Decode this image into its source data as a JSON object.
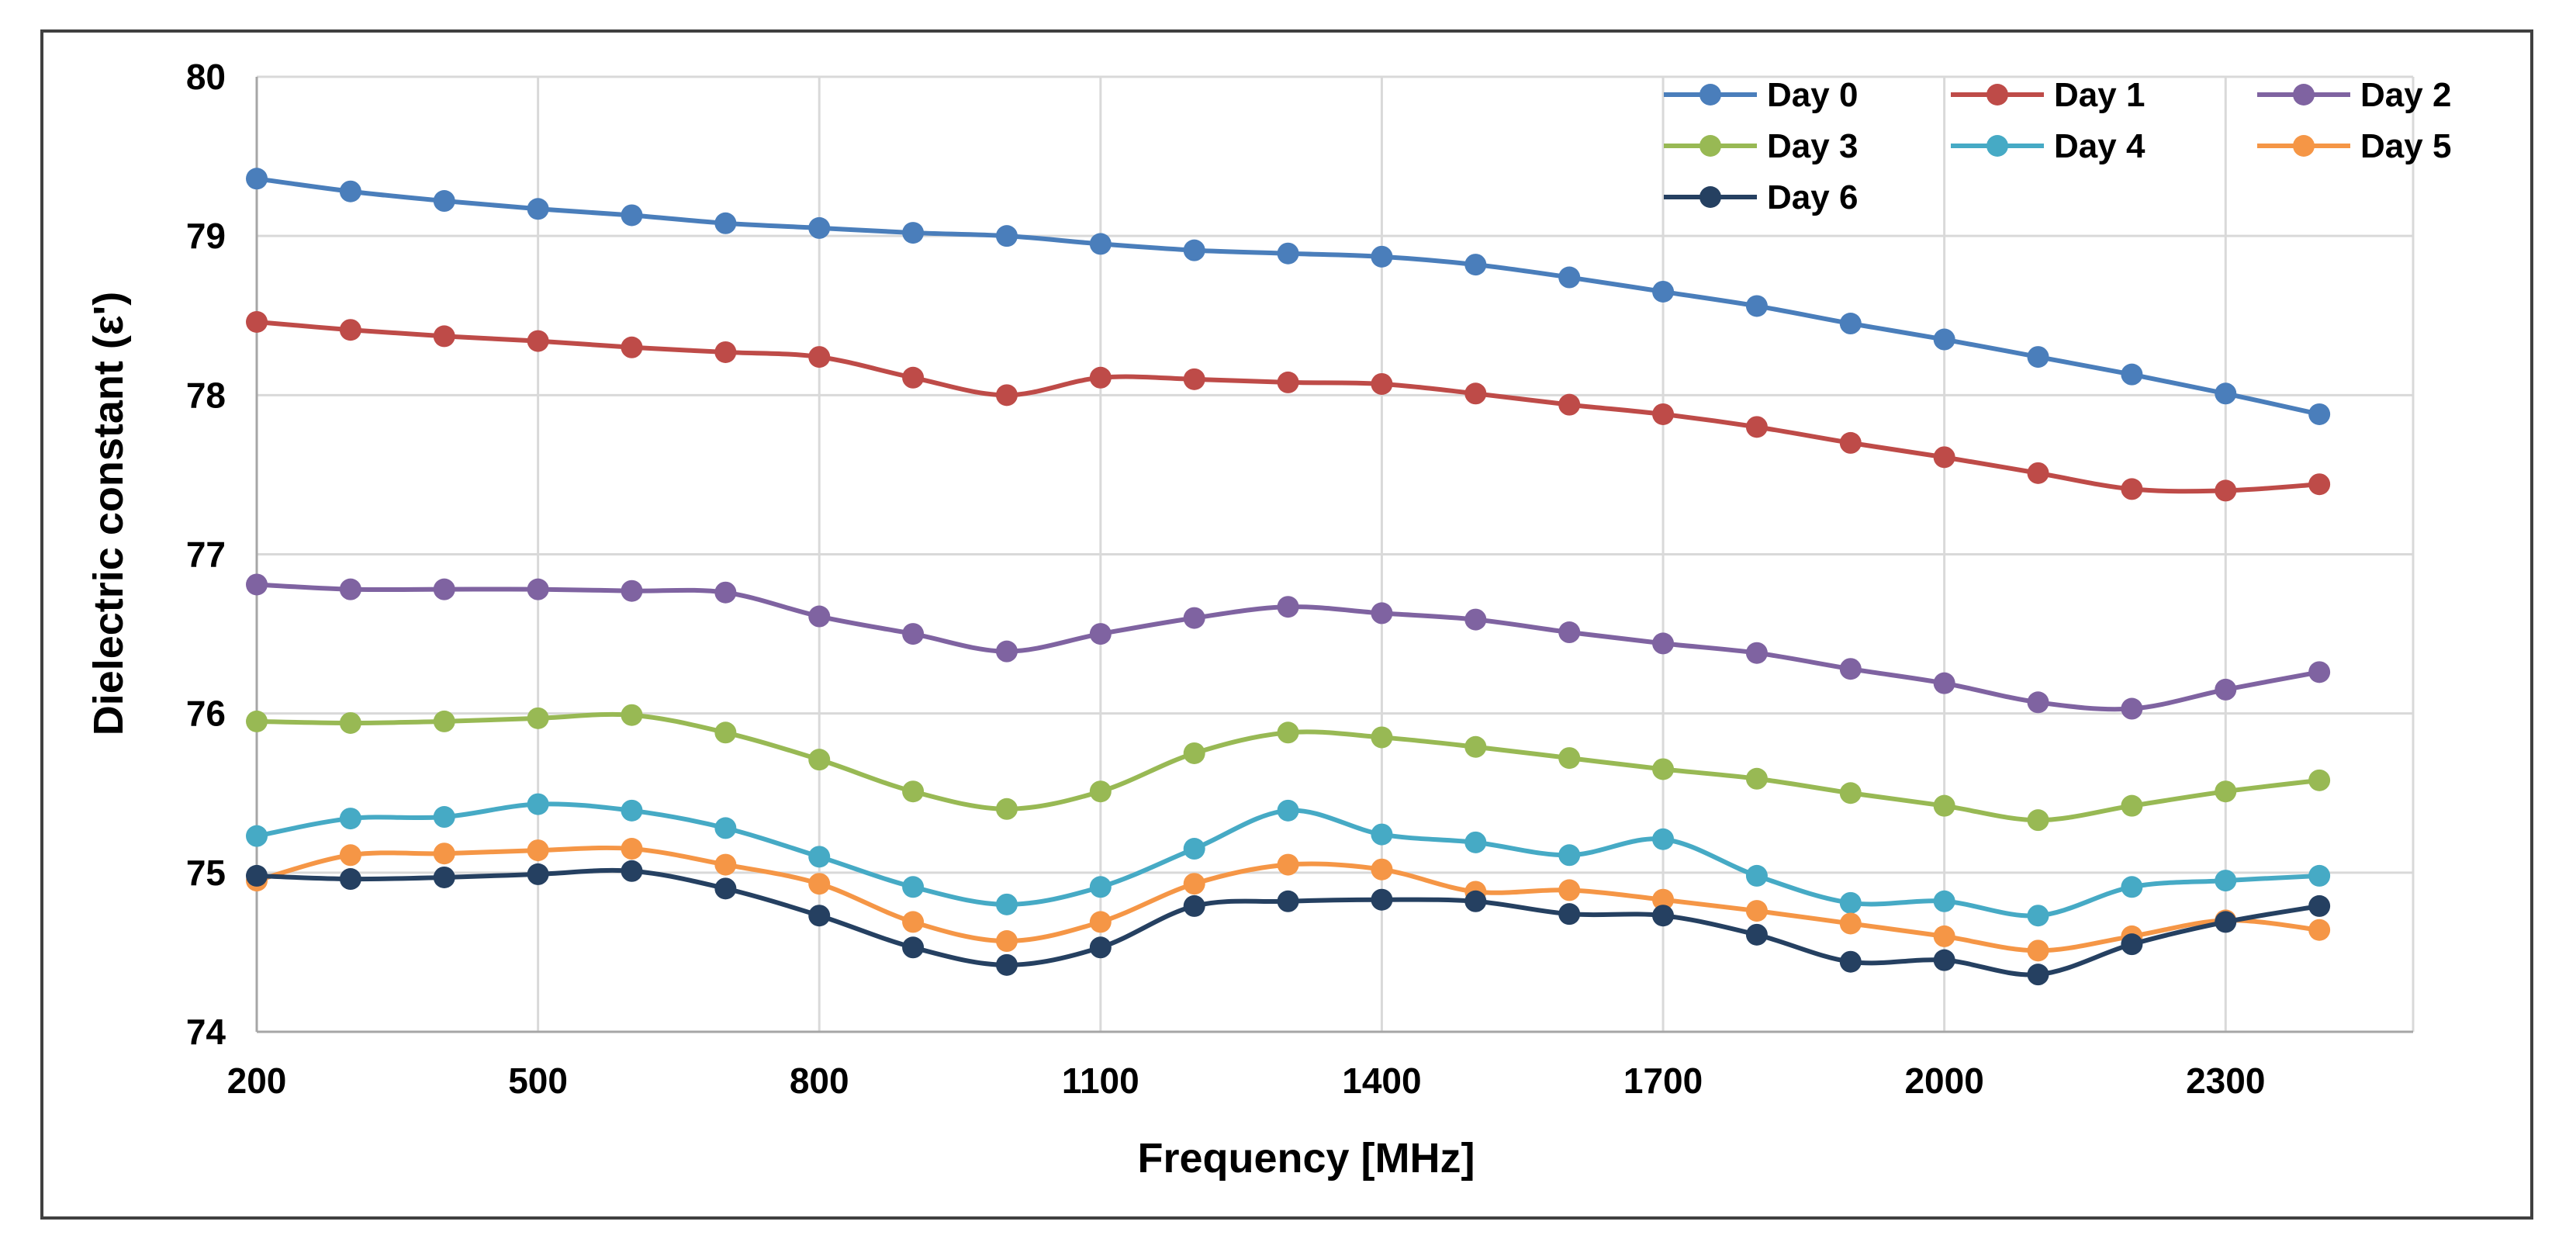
{
  "chart_data": {
    "type": "line",
    "title": "",
    "xlabel": "Frequency [MHz]",
    "ylabel": "Dielectric constant (ε')",
    "xlim": [
      200,
      2500
    ],
    "ylim": [
      74,
      80
    ],
    "x_ticks": [
      200,
      500,
      800,
      1100,
      1400,
      1700,
      2000,
      2300
    ],
    "y_ticks": [
      74,
      75,
      76,
      77,
      78,
      79,
      80
    ],
    "grid": true,
    "legend_position": "top-right",
    "x": [
      200,
      300,
      400,
      500,
      600,
      700,
      800,
      900,
      1000,
      1100,
      1200,
      1300,
      1400,
      1500,
      1600,
      1700,
      1800,
      1900,
      2000,
      2100,
      2200,
      2300,
      2400
    ],
    "series": [
      {
        "name": "Day 0",
        "color": "#4A7EBB",
        "values": [
          79.36,
          79.28,
          79.22,
          79.17,
          79.13,
          79.08,
          79.05,
          79.02,
          79.0,
          78.95,
          78.91,
          78.89,
          78.87,
          78.82,
          78.74,
          78.65,
          78.56,
          78.45,
          78.35,
          78.24,
          78.13,
          78.01,
          77.88
        ]
      },
      {
        "name": "Day 1",
        "color": "#BE4B48",
        "values": [
          78.46,
          78.41,
          78.37,
          78.34,
          78.3,
          78.27,
          78.24,
          78.11,
          78.0,
          78.11,
          78.1,
          78.08,
          78.07,
          78.01,
          77.94,
          77.88,
          77.8,
          77.7,
          77.61,
          77.51,
          77.41,
          77.4,
          77.44
        ]
      },
      {
        "name": "Day 2",
        "color": "#7F63A1",
        "values": [
          76.81,
          76.78,
          76.78,
          76.78,
          76.77,
          76.76,
          76.61,
          76.5,
          76.39,
          76.5,
          76.6,
          76.67,
          76.63,
          76.59,
          76.51,
          76.44,
          76.38,
          76.28,
          76.19,
          76.07,
          76.03,
          76.15,
          76.26
        ]
      },
      {
        "name": "Day 3",
        "color": "#98B954",
        "values": [
          75.95,
          75.94,
          75.95,
          75.97,
          75.99,
          75.88,
          75.71,
          75.51,
          75.4,
          75.51,
          75.75,
          75.88,
          75.85,
          75.79,
          75.72,
          75.65,
          75.59,
          75.5,
          75.42,
          75.33,
          75.42,
          75.51,
          75.58
        ]
      },
      {
        "name": "Day 4",
        "color": "#46AAC5",
        "values": [
          75.23,
          75.34,
          75.35,
          75.43,
          75.39,
          75.28,
          75.1,
          74.91,
          74.8,
          74.91,
          75.15,
          75.39,
          75.24,
          75.19,
          75.11,
          75.21,
          74.98,
          74.81,
          74.82,
          74.73,
          74.91,
          74.95,
          74.98
        ]
      },
      {
        "name": "Day 5",
        "color": "#F59646",
        "values": [
          74.95,
          75.11,
          75.12,
          75.14,
          75.15,
          75.05,
          74.93,
          74.69,
          74.57,
          74.69,
          74.93,
          75.05,
          75.02,
          74.88,
          74.89,
          74.83,
          74.76,
          74.68,
          74.6,
          74.51,
          74.6,
          74.7,
          74.64
        ]
      },
      {
        "name": "Day 6",
        "color": "#254061",
        "values": [
          74.98,
          74.96,
          74.97,
          74.99,
          75.01,
          74.9,
          74.73,
          74.53,
          74.42,
          74.53,
          74.79,
          74.82,
          74.83,
          74.82,
          74.74,
          74.73,
          74.61,
          74.44,
          74.45,
          74.36,
          74.55,
          74.69,
          74.79
        ]
      }
    ]
  }
}
